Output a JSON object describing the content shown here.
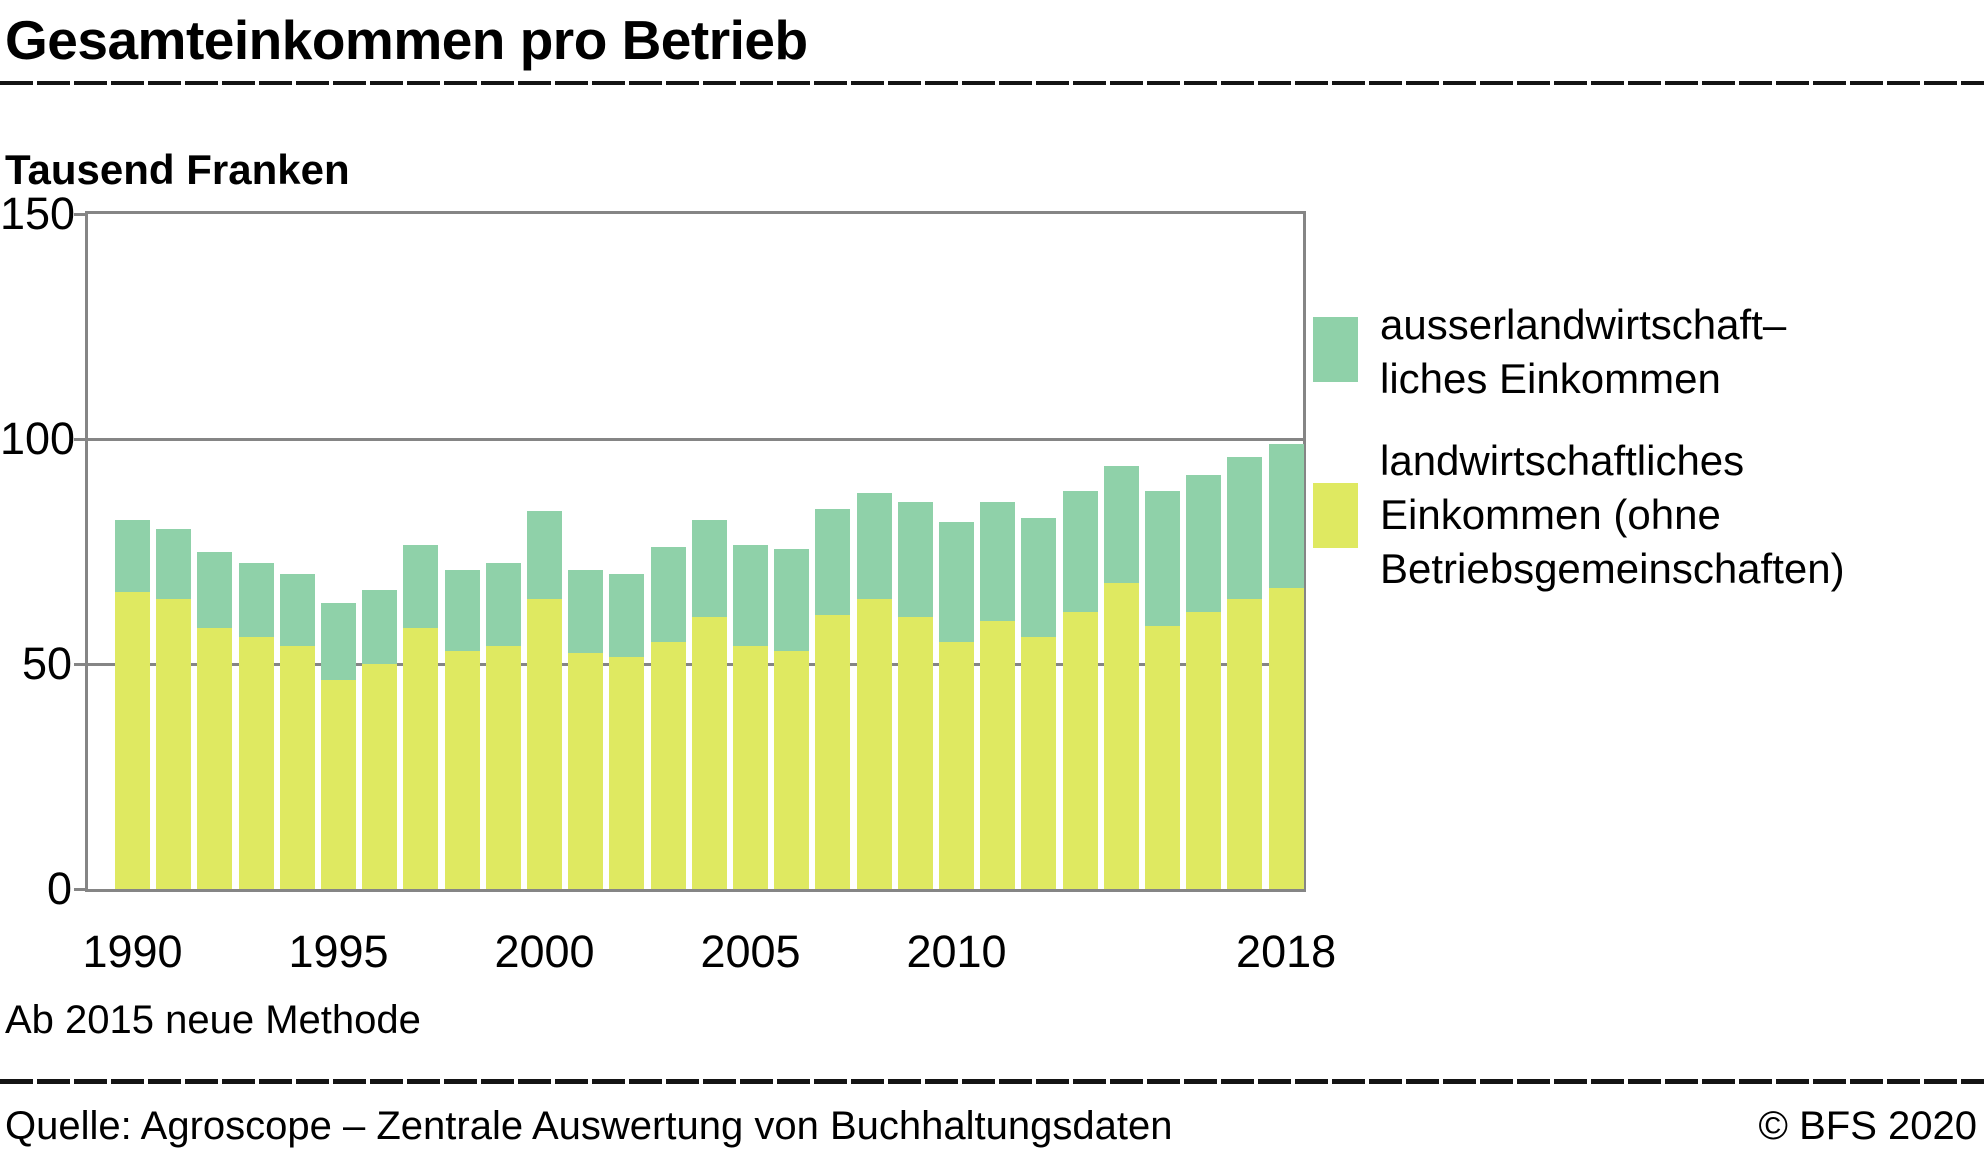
{
  "chart_data": {
    "type": "bar",
    "stacked": true,
    "title": "Gesamteinkommen pro Betrieb",
    "unit_label": "Tausend Franken",
    "categories": [
      1990,
      1991,
      1992,
      1993,
      1994,
      1995,
      1996,
      1997,
      1998,
      1999,
      2000,
      2001,
      2002,
      2003,
      2004,
      2005,
      2006,
      2007,
      2008,
      2009,
      2010,
      2011,
      2012,
      2013,
      2014,
      2015,
      2016,
      2017,
      2018
    ],
    "series": [
      {
        "name": "landwirtschaftliches Einkommen (ohne Betriebsgemeinschaften)",
        "color": "#dfe961",
        "values": [
          66,
          64.5,
          58,
          56,
          54,
          46.5,
          50,
          58,
          53,
          54,
          64.5,
          52.5,
          51.5,
          55,
          60.5,
          54,
          53,
          61,
          64.5,
          60.5,
          55,
          59.5,
          56,
          61.5,
          68,
          58.5,
          61.5,
          64.5,
          67
        ]
      },
      {
        "name": "ausserlandwirtschaftliches Einkommen",
        "color": "#8fd1a9",
        "values": [
          16,
          15.5,
          17,
          16.5,
          16,
          17,
          16.5,
          18.5,
          18,
          18.5,
          19.5,
          18.5,
          18.5,
          21,
          21.5,
          22.5,
          22.5,
          23.5,
          23.5,
          25.5,
          26.5,
          26.5,
          26.5,
          27,
          26,
          30,
          30.5,
          31.5,
          32
        ]
      }
    ],
    "ylim": [
      0,
      150
    ],
    "yticks": [
      0,
      50,
      100,
      150
    ],
    "xtick_labels": [
      "1990",
      "1995",
      "2000",
      "2005",
      "2010",
      "2018"
    ],
    "grid": "horizontal",
    "legend_position": "right",
    "axis_color": "#858585"
  },
  "legend": {
    "items": [
      {
        "series": 1,
        "label": "ausserlandwirtschaft–\nliches Einkommen"
      },
      {
        "series": 0,
        "label": "landwirtschaftliches\nEinkommen (ohne\nBetriebsgemeinschaften)"
      }
    ]
  },
  "footnote": "Ab 2015 neue Methode",
  "footer": {
    "source": "Quelle: Agroscope – Zentrale Auswertung von Buchhaltungsdaten",
    "copyright": "© BFS 2020"
  }
}
